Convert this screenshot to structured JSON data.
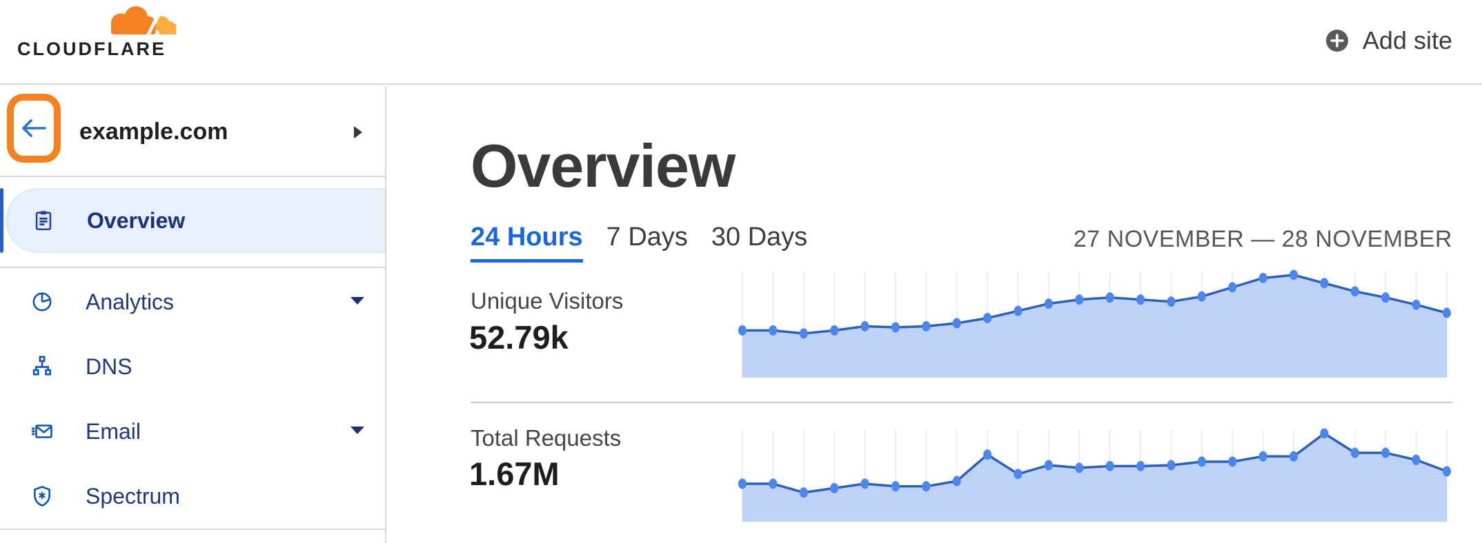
{
  "header": {
    "logo_word": "CLOUDFLARE",
    "add_site_label": "Add site"
  },
  "sidebar": {
    "site_name": "example.com",
    "items": [
      {
        "label": "Overview",
        "icon": "clipboard-icon",
        "active": true,
        "has_caret": false
      },
      {
        "label": "Analytics",
        "icon": "pie-chart-icon",
        "active": false,
        "has_caret": true
      },
      {
        "label": "DNS",
        "icon": "sitemap-icon",
        "active": false,
        "has_caret": false
      },
      {
        "label": "Email",
        "icon": "envelope-icon",
        "active": false,
        "has_caret": true
      },
      {
        "label": "Spectrum",
        "icon": "shield-icon",
        "active": false,
        "has_caret": false
      }
    ]
  },
  "main": {
    "title": "Overview",
    "tabs": [
      {
        "label": "24 Hours",
        "active": true
      },
      {
        "label": "7 Days",
        "active": false
      },
      {
        "label": "30 Days",
        "active": false
      }
    ],
    "date_range": "27 NOVEMBER — 28 NOVEMBER",
    "metrics": [
      {
        "label": "Unique Visitors",
        "value": "52.79k"
      },
      {
        "label": "Total Requests",
        "value": "1.67M"
      }
    ]
  },
  "chart_data": [
    {
      "type": "area",
      "title": "Unique Visitors",
      "total_shown": "52.79k",
      "x_range_label": "27 NOVEMBER — 28 NOVEMBER",
      "points": 24,
      "ylabel": "",
      "xlabel": "",
      "ylim": [
        0,
        100
      ],
      "value_scale": "percent of series peak (chart has no visible axis labels)",
      "values": [
        46,
        46,
        43,
        46,
        50,
        49,
        50,
        53,
        58,
        65,
        72,
        76,
        78,
        76,
        74,
        79,
        88,
        97,
        100,
        92,
        84,
        78,
        71,
        63
      ],
      "grid": "vertical-only",
      "legend": "none"
    },
    {
      "type": "area",
      "title": "Total Requests",
      "total_shown": "1.67M",
      "x_range_label": "27 NOVEMBER — 28 NOVEMBER",
      "points": 24,
      "ylabel": "",
      "xlabel": "",
      "ylim": [
        0,
        100
      ],
      "value_scale": "percent of series peak (chart has no visible axis labels)",
      "values": [
        43,
        43,
        33,
        38,
        43,
        40,
        40,
        46,
        76,
        54,
        64,
        61,
        63,
        63,
        64,
        68,
        68,
        74,
        74,
        100,
        78,
        78,
        70,
        57
      ],
      "grid": "vertical-only",
      "legend": "none"
    }
  ],
  "colors": {
    "brand_orange": "#f6821f",
    "brand_orange_light": "#fbad41",
    "nav_blue_icon": "#0b52c0",
    "nav_blue_text": "#16337c",
    "active_pill_bg": "#e9effb",
    "tab_active_blue": "#1a66e0",
    "chart_line": "#2a5fc0",
    "chart_dot": "#4a86ec",
    "chart_fill": "#bdd3f5",
    "chart_grid": "#ececf1",
    "border_gray": "#d8d8d8"
  }
}
